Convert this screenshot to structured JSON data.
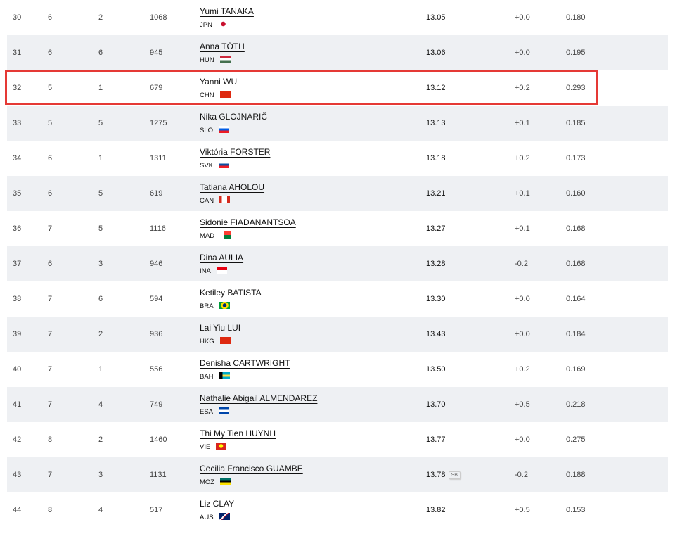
{
  "rows": [
    {
      "pos": "30",
      "heat": "6",
      "lane": "2",
      "bib": "1068",
      "name": "Yumi TANAKA",
      "country": "JPN",
      "flag": "jpn",
      "mark": "13.05",
      "badge": "",
      "wind": "+0.0",
      "reaction": "0.180"
    },
    {
      "pos": "31",
      "heat": "6",
      "lane": "6",
      "bib": "945",
      "name": "Anna TÓTH",
      "country": "HUN",
      "flag": "hun",
      "mark": "13.06",
      "badge": "",
      "wind": "+0.0",
      "reaction": "0.195"
    },
    {
      "pos": "32",
      "heat": "5",
      "lane": "1",
      "bib": "679",
      "name": "Yanni WU",
      "country": "CHN",
      "flag": "chn",
      "mark": "13.12",
      "badge": "",
      "wind": "+0.2",
      "reaction": "0.293",
      "highlighted": true
    },
    {
      "pos": "33",
      "heat": "5",
      "lane": "5",
      "bib": "1275",
      "name": "Nika GLOJNARIČ",
      "country": "SLO",
      "flag": "slo",
      "mark": "13.13",
      "badge": "",
      "wind": "+0.1",
      "reaction": "0.185"
    },
    {
      "pos": "34",
      "heat": "6",
      "lane": "1",
      "bib": "1311",
      "name": "Viktória FORSTER",
      "country": "SVK",
      "flag": "svk",
      "mark": "13.18",
      "badge": "",
      "wind": "+0.2",
      "reaction": "0.173"
    },
    {
      "pos": "35",
      "heat": "6",
      "lane": "5",
      "bib": "619",
      "name": "Tatiana AHOLOU",
      "country": "CAN",
      "flag": "can",
      "mark": "13.21",
      "badge": "",
      "wind": "+0.1",
      "reaction": "0.160"
    },
    {
      "pos": "36",
      "heat": "7",
      "lane": "5",
      "bib": "1116",
      "name": "Sidonie FIADANANTSOA",
      "country": "MAD",
      "flag": "mad",
      "mark": "13.27",
      "badge": "",
      "wind": "+0.1",
      "reaction": "0.168"
    },
    {
      "pos": "37",
      "heat": "6",
      "lane": "3",
      "bib": "946",
      "name": "Dina AULIA",
      "country": "INA",
      "flag": "ina",
      "mark": "13.28",
      "badge": "",
      "wind": "-0.2",
      "reaction": "0.168"
    },
    {
      "pos": "38",
      "heat": "7",
      "lane": "6",
      "bib": "594",
      "name": "Ketiley BATISTA",
      "country": "BRA",
      "flag": "bra",
      "mark": "13.30",
      "badge": "",
      "wind": "+0.0",
      "reaction": "0.164"
    },
    {
      "pos": "39",
      "heat": "7",
      "lane": "2",
      "bib": "936",
      "name": "Lai Yiu LUI",
      "country": "HKG",
      "flag": "hkg",
      "mark": "13.43",
      "badge": "",
      "wind": "+0.0",
      "reaction": "0.184"
    },
    {
      "pos": "40",
      "heat": "7",
      "lane": "1",
      "bib": "556",
      "name": "Denisha CARTWRIGHT",
      "country": "BAH",
      "flag": "bah",
      "mark": "13.50",
      "badge": "",
      "wind": "+0.2",
      "reaction": "0.169"
    },
    {
      "pos": "41",
      "heat": "7",
      "lane": "4",
      "bib": "749",
      "name": "Nathalie Abigail ALMENDAREZ",
      "country": "ESA",
      "flag": "esa",
      "mark": "13.70",
      "badge": "",
      "wind": "+0.5",
      "reaction": "0.218"
    },
    {
      "pos": "42",
      "heat": "8",
      "lane": "2",
      "bib": "1460",
      "name": "Thi My Tien HUYNH",
      "country": "VIE",
      "flag": "vie",
      "mark": "13.77",
      "badge": "",
      "wind": "+0.0",
      "reaction": "0.275"
    },
    {
      "pos": "43",
      "heat": "7",
      "lane": "3",
      "bib": "1131",
      "name": "Cecilia Francisco GUAMBE",
      "country": "MOZ",
      "flag": "moz",
      "mark": "13.78",
      "badge": "SB",
      "wind": "-0.2",
      "reaction": "0.188"
    },
    {
      "pos": "44",
      "heat": "8",
      "lane": "4",
      "bib": "517",
      "name": "Liz CLAY",
      "country": "AUS",
      "flag": "aus",
      "mark": "13.82",
      "badge": "",
      "wind": "+0.5",
      "reaction": "0.153"
    }
  ],
  "highlight_color": "#e53935",
  "flag_styles": {
    "jpn": "radial-gradient(circle,#c8102e 0 3px,transparent 3.5px)",
    "hun": "linear-gradient(#cd2a3e 33%,#fff 33% 66%,#436f4d 66%)",
    "chn": "#de2910",
    "slo": "linear-gradient(#fff 33%,#005ce5 33% 66%,#ed1c24 66%)",
    "svk": "linear-gradient(#fff 33%,#0b4ea2 33% 66%,#ee1c25 66%)",
    "can": "linear-gradient(90deg,#d52b1e 25%,#fff 25% 75%,#d52b1e 75%)",
    "mad": "linear-gradient(90deg,#fff 33%,transparent 33%),linear-gradient(#fc3d32 50%,#007e3a 50%)",
    "ina": "linear-gradient(#e70011 50%,#fff 50%)",
    "bra": "radial-gradient(circle,#002776 0 2.5px,#fedf00 3px 5px,#009c3b 5.5px)",
    "hkg": "#de2910",
    "bah": "linear-gradient(90deg,#000 30%,transparent 30%),linear-gradient(#00abc9 33%,#fae042 33% 66%,#00abc9 66%)",
    "esa": "linear-gradient(#0047ab 33%,#fff 33% 66%,#0047ab 66%)",
    "vie": "radial-gradient(circle,#ff0 0 2.5px,#da251d 3px)",
    "moz": "linear-gradient(#007168 33%,#000 33% 66%,#fce100 66%)",
    "aus": "linear-gradient(135deg,#012169 40%,#fff 40% 50%,#c8102e 50% 55%,#012169 55%)"
  }
}
